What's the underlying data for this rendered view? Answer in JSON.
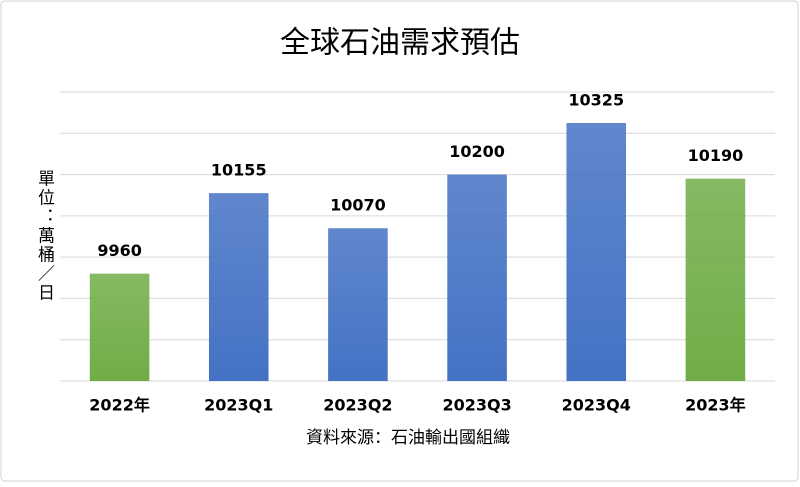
{
  "chart_data": {
    "type": "bar",
    "title": "全球石油需求預估",
    "y_label": "單位：萬桶／日",
    "x_label": "資料來源：石油輸出國組織",
    "categories": [
      "2022年",
      "2023Q1",
      "2023Q2",
      "2023Q3",
      "2023Q4",
      "2023年"
    ],
    "values": [
      9960,
      10155,
      10070,
      10200,
      10325,
      10190
    ],
    "colors": [
      "#70ad47",
      "#4472c4",
      "#4472c4",
      "#4472c4",
      "#4472c4",
      "#70ad47"
    ],
    "ylim": [
      9700,
      10400
    ],
    "yticks": [
      9700,
      9800,
      9900,
      10000,
      10100,
      10200,
      10300,
      10400
    ],
    "grid": true
  }
}
